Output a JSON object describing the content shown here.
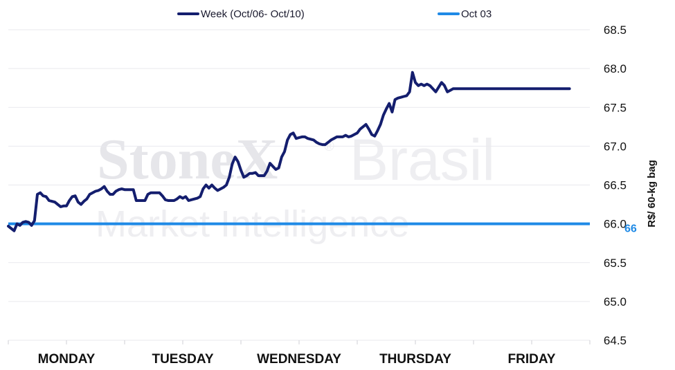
{
  "watermark": {
    "brand": "StoneX",
    "brand_suffix": "Brasil",
    "registered": "®",
    "tagline": "Market Intelligence"
  },
  "colors": {
    "week_line": "#141e6e",
    "reference_line": "#1f8ae6",
    "grid": "#e9e9ee"
  },
  "chart_data": {
    "type": "line",
    "categories": [
      "MONDAY",
      "TUESDAY",
      "WEDNESDAY",
      "THURSDAY",
      "FRIDAY"
    ],
    "ylabel": "R$/ 60-kg bag",
    "ylim": [
      64.5,
      68.5
    ],
    "yticks": [
      "64.5",
      "65.0",
      "65.5",
      "66.0",
      "66.5",
      "67.0",
      "67.5",
      "68.0",
      "68.5"
    ],
    "grid": true,
    "legend_position": "top",
    "series": [
      {
        "name": "Week (Oct/06- Oct/10)",
        "x": [
          0.0,
          0.05,
          0.075,
          0.1,
          0.125,
          0.15,
          0.175,
          0.2,
          0.225,
          0.25,
          0.275,
          0.3,
          0.325,
          0.35,
          0.375,
          0.4,
          0.425,
          0.45,
          0.475,
          0.5,
          0.525,
          0.55,
          0.575,
          0.6,
          0.625,
          0.65,
          0.675,
          0.7,
          0.725,
          0.75,
          0.775,
          0.8,
          0.825,
          0.85,
          0.875,
          0.9,
          0.925,
          0.95,
          0.975,
          1.0,
          1.025,
          1.05,
          1.075,
          1.1,
          1.125,
          1.15,
          1.175,
          1.2,
          1.225,
          1.25,
          1.275,
          1.3,
          1.325,
          1.35,
          1.375,
          1.4,
          1.425,
          1.45,
          1.475,
          1.5,
          1.525,
          1.55,
          1.575,
          1.6,
          1.625,
          1.65,
          1.675,
          1.7,
          1.725,
          1.75,
          1.775,
          1.8,
          1.825,
          1.85,
          1.875,
          1.9,
          1.925,
          1.95,
          1.975,
          2.0,
          2.025,
          2.05,
          2.075,
          2.1,
          2.125,
          2.15,
          2.175,
          2.2,
          2.225,
          2.25,
          2.275,
          2.3,
          2.325,
          2.35,
          2.375,
          2.4,
          2.425,
          2.45,
          2.475,
          2.5,
          2.525,
          2.55,
          2.575,
          2.6,
          2.625,
          2.65,
          2.675,
          2.7,
          2.725,
          2.75,
          2.775,
          2.8,
          2.825,
          2.85,
          2.875,
          2.9,
          2.925,
          2.95,
          2.975,
          3.0,
          3.025,
          3.05,
          3.075,
          3.1,
          3.125,
          3.15,
          3.175,
          3.2,
          3.225,
          3.25,
          3.275,
          3.3,
          3.325,
          3.35,
          3.375,
          3.4,
          3.425,
          3.45,
          3.475,
          3.5,
          3.525,
          3.55,
          3.575,
          3.6,
          3.625,
          3.65,
          3.675,
          3.7,
          3.725,
          3.75,
          3.775,
          3.8,
          3.825,
          3.85,
          3.875,
          3.9,
          3.925,
          3.95,
          3.975,
          4.0,
          4.025,
          4.05,
          4.075,
          4.1,
          4.125,
          4.15,
          4.175,
          4.2,
          4.225,
          4.25,
          4.275,
          4.3,
          4.325,
          4.35,
          4.375,
          4.4,
          4.425,
          4.45,
          4.475,
          4.5,
          4.525,
          4.55,
          4.575,
          4.6,
          4.625,
          4.65,
          4.675,
          4.7,
          4.725,
          4.75,
          4.775,
          4.8,
          4.825
        ],
        "values": [
          65.97,
          65.91,
          66.0,
          65.98,
          66.02,
          66.03,
          66.02,
          65.98,
          66.04,
          66.38,
          66.4,
          66.36,
          66.35,
          66.3,
          66.29,
          66.28,
          66.25,
          66.22,
          66.23,
          66.23,
          66.3,
          66.35,
          66.36,
          66.28,
          66.25,
          66.29,
          66.32,
          66.38,
          66.4,
          66.42,
          66.43,
          66.45,
          66.48,
          66.42,
          66.38,
          66.38,
          66.42,
          66.44,
          66.45,
          66.44,
          66.44,
          66.44,
          66.44,
          66.3,
          66.3,
          66.3,
          66.3,
          66.38,
          66.4,
          66.4,
          66.4,
          66.4,
          66.36,
          66.31,
          66.3,
          66.3,
          66.3,
          66.32,
          66.35,
          66.33,
          66.35,
          66.3,
          66.31,
          66.32,
          66.33,
          66.35,
          66.45,
          66.5,
          66.46,
          66.5,
          66.46,
          66.43,
          66.45,
          66.47,
          66.5,
          66.6,
          66.77,
          66.86,
          66.8,
          66.69,
          66.6,
          66.62,
          66.65,
          66.65,
          66.66,
          66.62,
          66.62,
          66.62,
          66.68,
          66.78,
          66.74,
          66.7,
          66.72,
          66.86,
          66.93,
          67.08,
          67.15,
          67.17,
          67.1,
          67.11,
          67.12,
          67.12,
          67.1,
          67.09,
          67.08,
          67.05,
          67.03,
          67.02,
          67.02,
          67.05,
          67.08,
          67.1,
          67.12,
          67.12,
          67.12,
          67.14,
          67.12,
          67.13,
          67.15,
          67.17,
          67.22,
          67.25,
          67.28,
          67.22,
          67.15,
          67.13,
          67.2,
          67.28,
          67.4,
          67.48,
          67.55,
          67.44,
          67.6,
          67.62,
          67.63,
          67.64,
          67.65,
          67.7,
          67.95,
          67.82,
          67.78,
          67.8,
          67.78,
          67.8,
          67.78,
          67.74,
          67.7,
          67.76,
          67.82,
          67.78,
          67.7,
          67.72,
          67.74,
          67.74,
          67.74,
          67.74,
          67.74,
          67.74,
          67.74,
          67.74,
          67.74,
          67.74,
          67.74,
          67.74,
          67.74,
          67.74,
          67.74,
          67.74,
          67.74,
          67.74,
          67.74,
          67.74,
          67.74,
          67.74,
          67.74,
          67.74,
          67.74,
          67.74,
          67.74,
          67.74,
          67.74,
          67.74,
          67.74,
          67.74,
          67.74,
          67.74,
          67.74,
          67.74,
          67.74,
          67.74,
          67.74,
          67.74,
          67.74
        ]
      },
      {
        "name": "Oct 03",
        "value": 66.0,
        "label": "66"
      }
    ]
  }
}
